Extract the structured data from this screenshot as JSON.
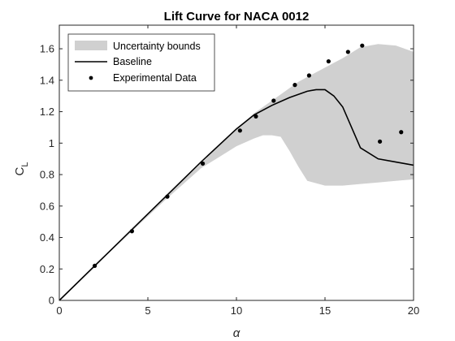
{
  "chart_data": {
    "type": "line",
    "title": "Lift Curve for NACA 0012",
    "xlabel": "α",
    "ylabel": "C",
    "ylabel_sub": "L",
    "xlim": [
      0,
      20
    ],
    "ylim": [
      0,
      1.75
    ],
    "xticks": [
      0,
      5,
      10,
      15,
      20
    ],
    "yticks": [
      0,
      0.2,
      0.4,
      0.6,
      0.8,
      1,
      1.2,
      1.4,
      1.6
    ],
    "ytick_labels": [
      "0",
      "0.2",
      "0.4",
      "0.6",
      "0.8",
      "1",
      "1.2",
      "1.4",
      "1.6"
    ],
    "grid": false,
    "legend_position": "top-left",
    "colors": {
      "band": "#d0d0d0",
      "line": "#000000",
      "markers": "#000000"
    },
    "series": [
      {
        "name": "Uncertainty bounds",
        "kind": "band",
        "x": [
          0,
          2,
          4,
          6,
          8,
          9,
          10,
          11,
          11.5,
          12,
          12.5,
          13,
          13.5,
          14,
          15,
          16,
          17,
          18,
          19,
          20
        ],
        "upper": [
          0,
          0.22,
          0.44,
          0.66,
          0.87,
          0.98,
          1.09,
          1.19,
          1.23,
          1.27,
          1.31,
          1.35,
          1.39,
          1.42,
          1.48,
          1.54,
          1.61,
          1.63,
          1.62,
          1.58
        ],
        "lower": [
          0,
          0.215,
          0.43,
          0.64,
          0.84,
          0.91,
          0.98,
          1.03,
          1.05,
          1.05,
          1.04,
          0.95,
          0.85,
          0.76,
          0.73,
          0.73,
          0.74,
          0.75,
          0.76,
          0.77
        ]
      },
      {
        "name": "Baseline",
        "kind": "line",
        "x": [
          0,
          2,
          4,
          6,
          8,
          10,
          11,
          12,
          13,
          14,
          14.5,
          15,
          15.5,
          16,
          17,
          18,
          19,
          20
        ],
        "y": [
          0,
          0.22,
          0.44,
          0.66,
          0.88,
          1.09,
          1.18,
          1.24,
          1.29,
          1.33,
          1.34,
          1.34,
          1.3,
          1.23,
          0.97,
          0.9,
          0.88,
          0.86
        ]
      },
      {
        "name": "Experimental Data",
        "kind": "scatter",
        "x": [
          2,
          4.1,
          6.1,
          8.1,
          10.2,
          11.1,
          12.1,
          13.3,
          14.1,
          15.2,
          16.3,
          17.1,
          18.1,
          19.3
        ],
        "y": [
          0.22,
          0.44,
          0.66,
          0.87,
          1.08,
          1.17,
          1.27,
          1.37,
          1.43,
          1.52,
          1.58,
          1.62,
          1.01,
          1.07
        ]
      }
    ]
  }
}
